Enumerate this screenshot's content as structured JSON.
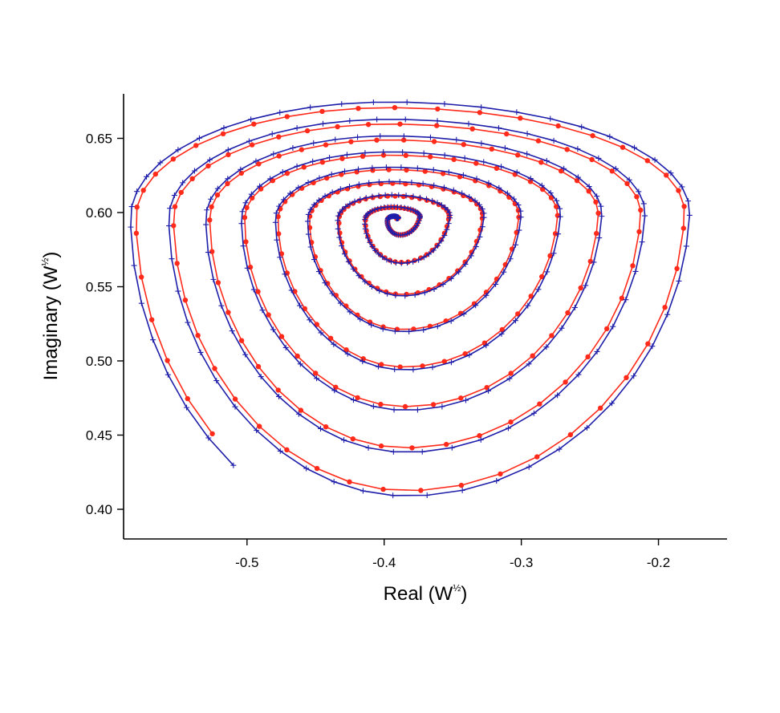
{
  "chart_data": {
    "type": "line",
    "title": "",
    "xlabel": "Real (W",
    "ylabel": "Imaginary (W",
    "unit_exponent": "½",
    "closing_paren": ")",
    "xlim": [
      -0.59,
      -0.15
    ],
    "ylim": [
      0.38,
      0.68
    ],
    "xticks": [
      -0.5,
      -0.4,
      -0.3,
      -0.2
    ],
    "xtick_labels": [
      "-0.5",
      "-0.4",
      "-0.3",
      "-0.2"
    ],
    "yticks": [
      0.4,
      0.45,
      0.5,
      0.55,
      0.6,
      0.65
    ],
    "ytick_labels": [
      "0.40",
      "0.45",
      "0.50",
      "0.55",
      "0.60",
      "0.65"
    ],
    "grid": false,
    "legend": "none",
    "spiral": {
      "center": [
        -0.391,
        0.596
      ],
      "turns": 8.7,
      "start_angle_deg": -20,
      "outer_radii": {
        "right": 0.235,
        "left": 0.198,
        "top": 0.084,
        "bottom": 0.212
      },
      "skew": 0.16,
      "wobble": 0.01
    },
    "series": [
      {
        "color": "#ff2a1a",
        "marker": "circle",
        "step_deg": 8.4,
        "offset": -0.004
      },
      {
        "color": "#1e1eaa",
        "marker": "plus",
        "step_deg": 7.2,
        "offset": 0.0
      }
    ]
  }
}
